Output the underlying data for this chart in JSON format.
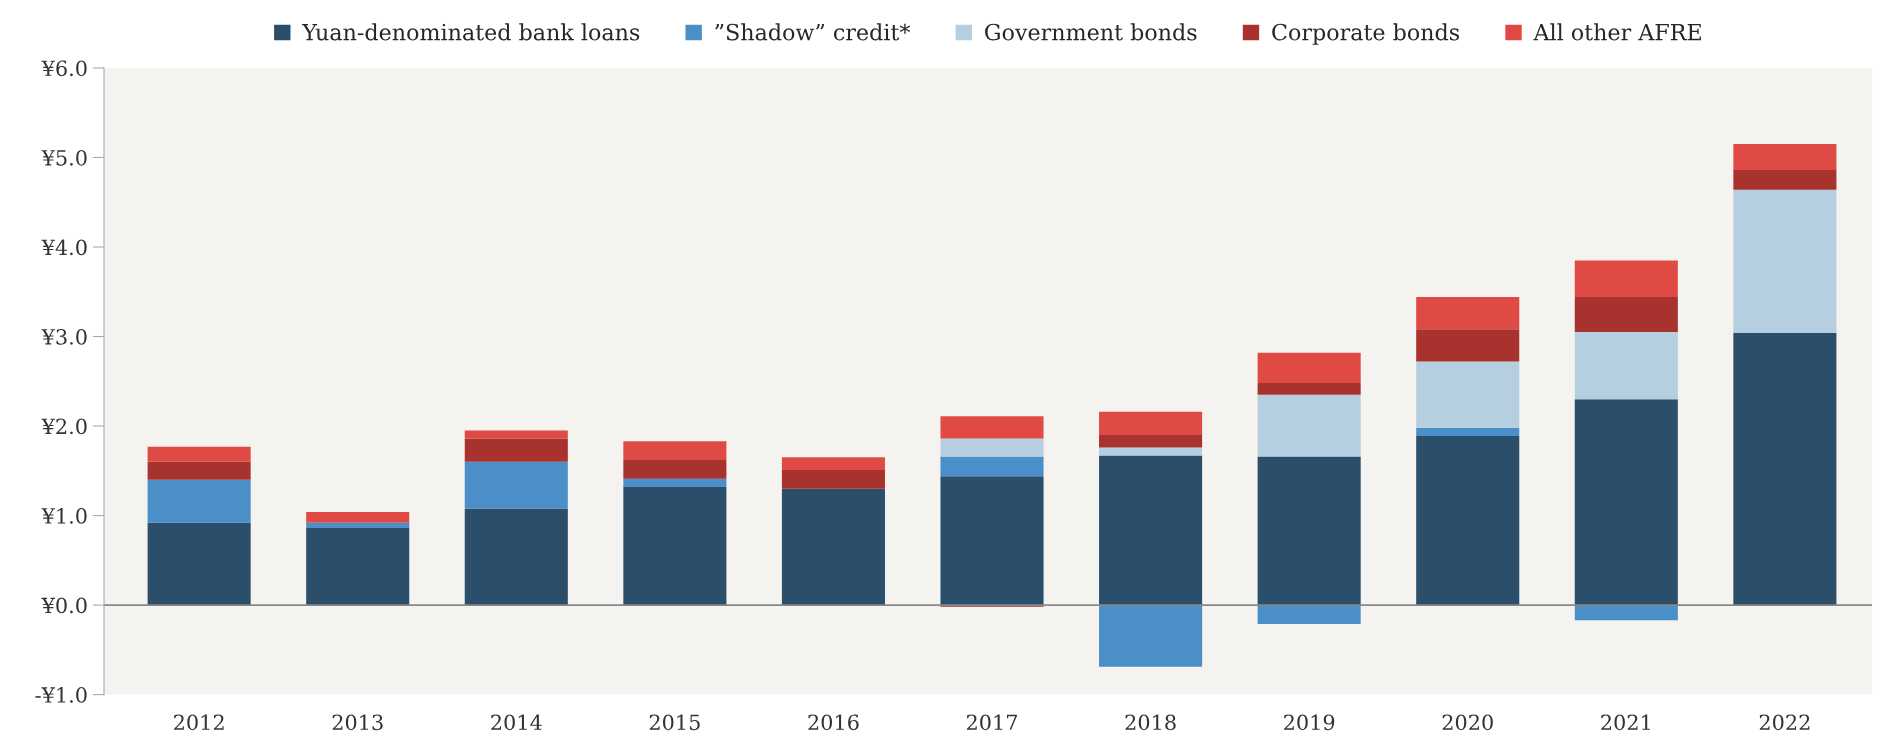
{
  "chart_data": {
    "type": "bar",
    "stacked": true,
    "categories": [
      "2012",
      "2013",
      "2014",
      "2015",
      "2016",
      "2017",
      "2018",
      "2019",
      "2020",
      "2021",
      "2022"
    ],
    "series": [
      {
        "name": "Yuan-denominated bank loans",
        "color": "#2b4f6b",
        "values": [
          0.92,
          0.86,
          1.08,
          1.32,
          1.3,
          1.44,
          1.67,
          1.66,
          1.89,
          2.3,
          3.04
        ]
      },
      {
        "name": "”Shadow” credit*",
        "color": "#4a8fc7",
        "values": [
          0.48,
          0.06,
          0.52,
          0.09,
          0,
          0.22,
          -0.69,
          -0.21,
          0.09,
          -0.17,
          0
        ]
      },
      {
        "name": "Government bonds",
        "color": "#b5cfe0",
        "values": [
          0,
          0,
          0,
          0,
          0,
          0.2,
          0.09,
          0.69,
          0.74,
          0.75,
          1.6
        ]
      },
      {
        "name": "Corporate bonds",
        "color": "#a8322d",
        "values": [
          0.2,
          0,
          0.26,
          0.21,
          0.21,
          -0.02,
          0.14,
          0.13,
          0.36,
          0.39,
          0.22
        ]
      },
      {
        "name": "All other AFRE",
        "color": "#e04a45",
        "values": [
          0.17,
          0.12,
          0.09,
          0.21,
          0.14,
          0.25,
          0.26,
          0.34,
          0.36,
          0.41,
          0.29
        ]
      }
    ],
    "ylim": [
      -1.0,
      6.0
    ],
    "yticks": [
      {
        "value": -1.0,
        "label": "-¥1.0"
      },
      {
        "value": 0.0,
        "label": "¥0.0"
      },
      {
        "value": 1.0,
        "label": "¥1.0"
      },
      {
        "value": 2.0,
        "label": "¥2.0"
      },
      {
        "value": 3.0,
        "label": "¥3.0"
      },
      {
        "value": 4.0,
        "label": "¥4.0"
      },
      {
        "value": 5.0,
        "label": "¥5.0"
      },
      {
        "value": 6.0,
        "label": "¥6.0"
      }
    ],
    "ref_lines": [
      {
        "axis": "y",
        "value": 0,
        "color": "#888888"
      }
    ],
    "grid": false,
    "legend": "top"
  }
}
